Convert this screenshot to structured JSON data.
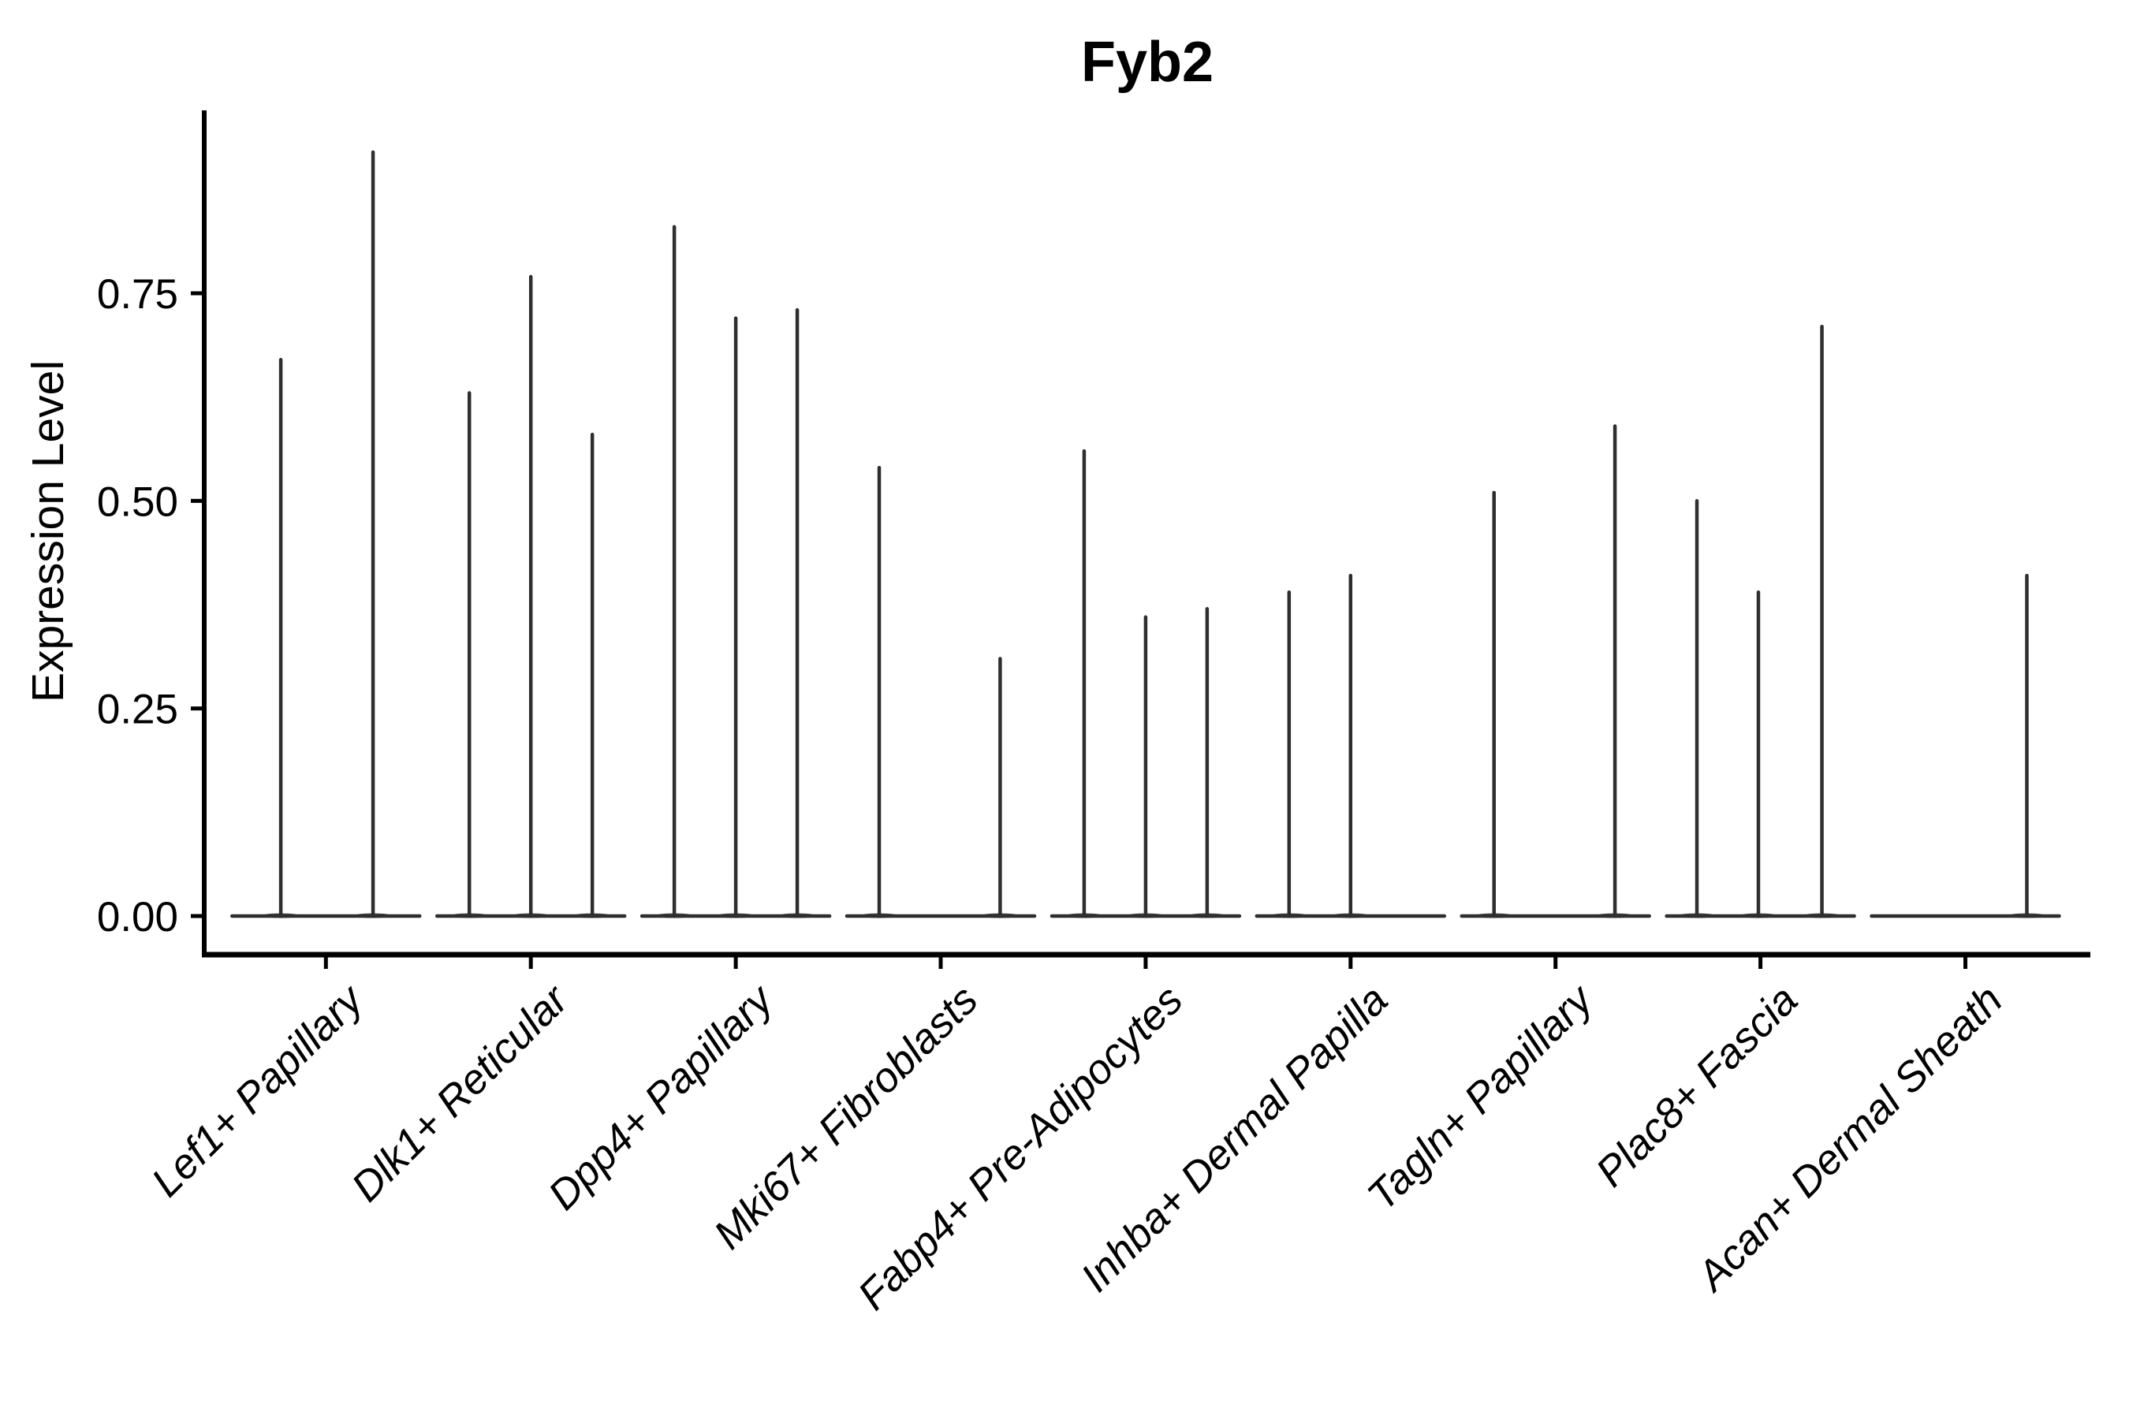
{
  "chart_data": {
    "type": "violin",
    "title": "Fyb2",
    "ylabel": "Expression Level",
    "xlabel": "",
    "grid": false,
    "legend": "none",
    "background_color": "#ffffff",
    "axis_color": "#000000",
    "violin_color": "#2e2e2e",
    "text_color": "#000000",
    "x_label_style": "italic, rotated 45 degrees",
    "ylim": [
      -0.046,
      0.97
    ],
    "yticks": [
      {
        "value": 0.0,
        "label": "0.00"
      },
      {
        "value": 0.25,
        "label": "0.25"
      },
      {
        "value": 0.5,
        "label": "0.50"
      },
      {
        "value": 0.75,
        "label": "0.75"
      }
    ],
    "categories": [
      {
        "label": "Lef1+ Papillary",
        "spikes": [
          {
            "offset": -0.22,
            "max": 0.67
          },
          {
            "offset": 0.23,
            "max": 0.92
          }
        ]
      },
      {
        "label": "Dlk1+ Reticular",
        "spikes": [
          {
            "offset": -0.3,
            "max": 0.63
          },
          {
            "offset": 0.0,
            "max": 0.77
          },
          {
            "offset": 0.3,
            "max": 0.58
          }
        ]
      },
      {
        "label": "Dpp4+ Papillary",
        "spikes": [
          {
            "offset": -0.3,
            "max": 0.83
          },
          {
            "offset": 0.0,
            "max": 0.72
          },
          {
            "offset": 0.3,
            "max": 0.73
          }
        ]
      },
      {
        "label": "Mki67+ Fibroblasts",
        "spikes": [
          {
            "offset": -0.3,
            "max": 0.54
          },
          {
            "offset": 0.29,
            "max": 0.31
          }
        ]
      },
      {
        "label": "Fabp4+ Pre-Adipocytes",
        "spikes": [
          {
            "offset": -0.3,
            "max": 0.56
          },
          {
            "offset": 0.0,
            "max": 0.36
          },
          {
            "offset": 0.3,
            "max": 0.37
          }
        ]
      },
      {
        "label": "Inhba+ Dermal Papilla",
        "spikes": [
          {
            "offset": -0.3,
            "max": 0.39
          },
          {
            "offset": 0.0,
            "max": 0.41
          }
        ]
      },
      {
        "label": "Tagln+ Papillary",
        "spikes": [
          {
            "offset": -0.3,
            "max": 0.51
          },
          {
            "offset": 0.29,
            "max": 0.59
          }
        ]
      },
      {
        "label": "Plac8+ Fascia",
        "spikes": [
          {
            "offset": -0.31,
            "max": 0.5
          },
          {
            "offset": -0.01,
            "max": 0.39
          },
          {
            "offset": 0.3,
            "max": 0.71
          }
        ]
      },
      {
        "label": "Acan+ Dermal Sheath",
        "spikes": [
          {
            "offset": 0.3,
            "max": 0.41
          }
        ]
      }
    ]
  }
}
